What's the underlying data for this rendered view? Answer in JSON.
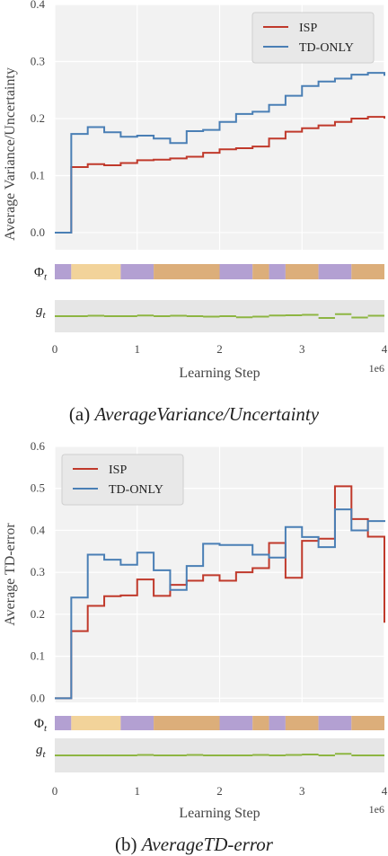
{
  "colors": {
    "isp": "#c0392b",
    "td_only": "#4a7fb5",
    "gt_line": "#8db542",
    "plot_bg": "#f2f2f2",
    "grid": "#ffffff",
    "phase_purple": "#b3a0d2",
    "phase_yellow": "#f2d39a",
    "phase_tan": "#dcae7a"
  },
  "captions": {
    "a_prefix": "(a)",
    "a_text": "AverageVariance/Uncertainty",
    "b_prefix": "(b)",
    "b_text": "AverageTD-error"
  },
  "strip_labels": {
    "phi_base": "Φ",
    "phi_sub": "t",
    "g_base": "g",
    "g_sub": "t"
  },
  "chart_data": [
    {
      "id": "a",
      "type": "line",
      "step": true,
      "xlabel": "Learning Step",
      "ylabel": "Average Variance/Uncertainty",
      "x_multiplier_label": "1e6",
      "xlim": [
        0,
        4
      ],
      "ylim": [
        -0.03,
        0.4
      ],
      "xticks": [
        "0",
        "1",
        "2",
        "3",
        "4"
      ],
      "yticks": [
        0.0,
        0.1,
        0.2,
        0.3,
        0.4
      ],
      "ytick_labels": [
        "0.0",
        "0.1",
        "0.2",
        "0.3",
        "0.4"
      ],
      "grid": true,
      "legend_position": "top-right",
      "x": [
        0,
        0.2,
        0.4,
        0.6,
        0.8,
        1.0,
        1.2,
        1.4,
        1.6,
        1.8,
        2.0,
        2.2,
        2.4,
        2.6,
        2.8,
        3.0,
        3.2,
        3.4,
        3.6,
        3.8,
        4.0
      ],
      "series": [
        {
          "name": "ISP",
          "color_key": "isp",
          "values": [
            0.0,
            0.115,
            0.12,
            0.118,
            0.122,
            0.127,
            0.128,
            0.13,
            0.133,
            0.14,
            0.146,
            0.148,
            0.151,
            0.165,
            0.177,
            0.183,
            0.188,
            0.194,
            0.2,
            0.203,
            0.2
          ]
        },
        {
          "name": "TD-ONLY",
          "color_key": "td_only",
          "values": [
            0.0,
            0.173,
            0.185,
            0.176,
            0.168,
            0.17,
            0.165,
            0.157,
            0.178,
            0.18,
            0.194,
            0.208,
            0.212,
            0.224,
            0.24,
            0.257,
            0.265,
            0.27,
            0.277,
            0.28,
            0.275
          ]
        }
      ],
      "phase_strip": {
        "segments": [
          {
            "from": 0.0,
            "to": 0.2,
            "phase": "purple"
          },
          {
            "from": 0.2,
            "to": 0.8,
            "phase": "yellow"
          },
          {
            "from": 0.8,
            "to": 1.2,
            "phase": "purple"
          },
          {
            "from": 1.2,
            "to": 2.0,
            "phase": "tan"
          },
          {
            "from": 2.0,
            "to": 2.4,
            "phase": "purple"
          },
          {
            "from": 2.4,
            "to": 2.6,
            "phase": "tan"
          },
          {
            "from": 2.6,
            "to": 2.8,
            "phase": "purple"
          },
          {
            "from": 2.8,
            "to": 3.2,
            "phase": "tan"
          },
          {
            "from": 3.2,
            "to": 3.6,
            "phase": "purple"
          },
          {
            "from": 3.6,
            "to": 4.0,
            "phase": "tan"
          }
        ]
      },
      "gt_strip": {
        "values": [
          0.5,
          0.5,
          0.55,
          0.5,
          0.5,
          0.58,
          0.5,
          0.55,
          0.5,
          0.45,
          0.5,
          0.38,
          0.45,
          0.58,
          0.6,
          0.65,
          0.3,
          0.72,
          0.35,
          0.55,
          0.55
        ]
      }
    },
    {
      "id": "b",
      "type": "line",
      "step": true,
      "xlabel": "Learning Step",
      "ylabel": "Average TD-error",
      "x_multiplier_label": "1e6",
      "xlim": [
        0,
        4
      ],
      "ylim": [
        -0.01,
        0.6
      ],
      "xticks": [
        "0",
        "1",
        "2",
        "3",
        "4"
      ],
      "yticks": [
        0.0,
        0.1,
        0.2,
        0.3,
        0.4,
        0.5,
        0.6
      ],
      "ytick_labels": [
        "0.0",
        "0.1",
        "0.2",
        "0.3",
        "0.4",
        "0.5",
        "0.6"
      ],
      "grid": true,
      "legend_position": "top-left",
      "x": [
        0,
        0.2,
        0.4,
        0.6,
        0.8,
        1.0,
        1.2,
        1.4,
        1.6,
        1.8,
        2.0,
        2.2,
        2.4,
        2.6,
        2.8,
        3.0,
        3.2,
        3.4,
        3.6,
        3.8,
        4.0
      ],
      "series": [
        {
          "name": "ISP",
          "color_key": "isp",
          "values": [
            0.0,
            0.16,
            0.22,
            0.243,
            0.245,
            0.283,
            0.244,
            0.27,
            0.28,
            0.293,
            0.28,
            0.3,
            0.31,
            0.37,
            0.287,
            0.375,
            0.38,
            0.505,
            0.427,
            0.385,
            0.18
          ]
        },
        {
          "name": "TD-ONLY",
          "color_key": "td_only",
          "values": [
            0.0,
            0.24,
            0.342,
            0.33,
            0.318,
            0.347,
            0.305,
            0.258,
            0.315,
            0.368,
            0.365,
            0.365,
            0.342,
            0.335,
            0.408,
            0.384,
            0.36,
            0.45,
            0.4,
            0.422,
            0.42
          ]
        }
      ],
      "phase_strip": {
        "segments": [
          {
            "from": 0.0,
            "to": 0.2,
            "phase": "purple"
          },
          {
            "from": 0.2,
            "to": 0.8,
            "phase": "yellow"
          },
          {
            "from": 0.8,
            "to": 1.2,
            "phase": "purple"
          },
          {
            "from": 1.2,
            "to": 2.0,
            "phase": "tan"
          },
          {
            "from": 2.0,
            "to": 2.4,
            "phase": "purple"
          },
          {
            "from": 2.4,
            "to": 2.6,
            "phase": "tan"
          },
          {
            "from": 2.6,
            "to": 2.8,
            "phase": "purple"
          },
          {
            "from": 2.8,
            "to": 3.2,
            "phase": "tan"
          },
          {
            "from": 3.2,
            "to": 3.6,
            "phase": "purple"
          },
          {
            "from": 3.6,
            "to": 4.0,
            "phase": "tan"
          }
        ]
      },
      "gt_strip": {
        "values": [
          0.5,
          0.5,
          0.5,
          0.5,
          0.5,
          0.55,
          0.5,
          0.5,
          0.55,
          0.5,
          0.5,
          0.5,
          0.55,
          0.5,
          0.55,
          0.6,
          0.5,
          0.68,
          0.5,
          0.5,
          0.5
        ]
      }
    }
  ]
}
